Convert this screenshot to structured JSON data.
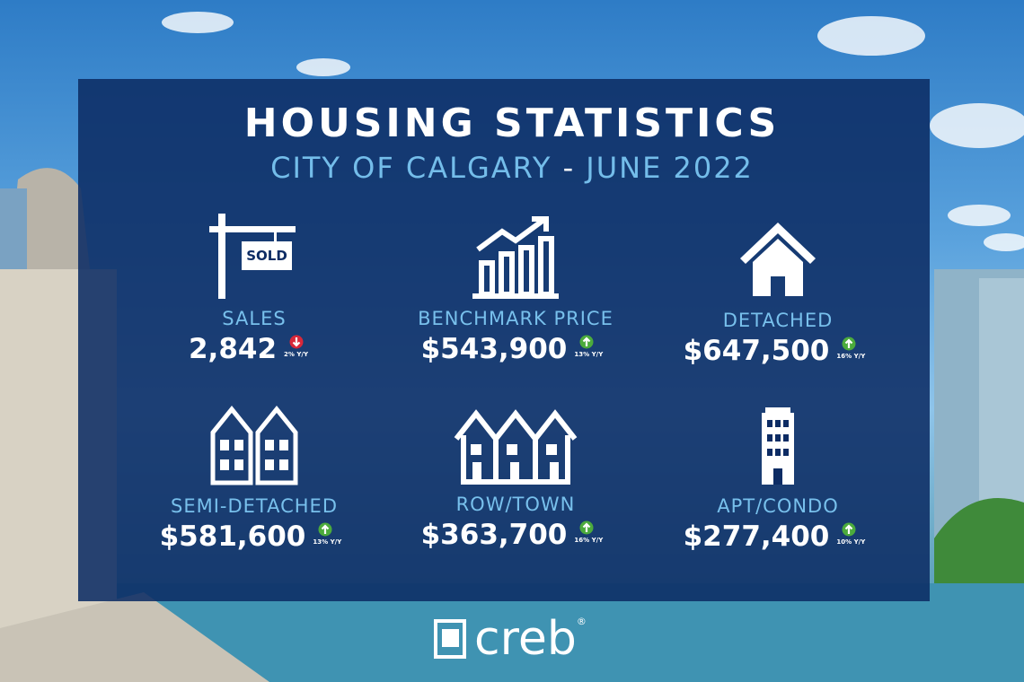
{
  "header": {
    "title": "HOUSING STATISTICS",
    "subtitle_place": "CITY OF CALGARY",
    "subtitle_separator": "-",
    "subtitle_date": "JUNE 2022"
  },
  "stats": [
    {
      "label": "SALES",
      "value": "2,842",
      "change": "2% Y/Y",
      "direction": "down",
      "icon_text": "SOLD"
    },
    {
      "label": "BENCHMARK PRICE",
      "value": "$543,900",
      "change": "13% Y/Y",
      "direction": "up"
    },
    {
      "label": "DETACHED",
      "value": "$647,500",
      "change": "16% Y/Y",
      "direction": "up"
    },
    {
      "label": "SEMI-DETACHED",
      "value": "$581,600",
      "change": "13% Y/Y",
      "direction": "up"
    },
    {
      "label": "ROW/TOWN",
      "value": "$363,700",
      "change": "16% Y/Y",
      "direction": "up"
    },
    {
      "label": "APT/CONDO",
      "value": "$277,400",
      "change": "10% Y/Y",
      "direction": "up"
    }
  ],
  "footer": {
    "brand": "creb",
    "mark": "®"
  }
}
